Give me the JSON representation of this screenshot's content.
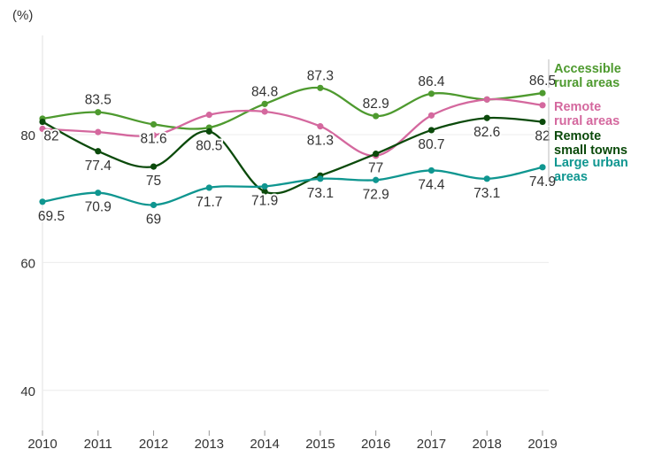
{
  "chart_data": {
    "type": "line",
    "title": "",
    "ylabel": "(%)",
    "xlabel": "",
    "x": [
      2010,
      2011,
      2012,
      2013,
      2014,
      2015,
      2016,
      2017,
      2018,
      2019
    ],
    "yticks": [
      40,
      60,
      80
    ],
    "ylim": [
      34,
      94
    ],
    "grid": true,
    "legend": "right, inline labels",
    "series": [
      {
        "name": "Accessible rural areas",
        "legend_lines": [
          "Accessible",
          "rural areas"
        ],
        "color": "#4e9a2f",
        "values": [
          82.5,
          83.5,
          81.6,
          81.1,
          84.8,
          87.3,
          82.9,
          86.4,
          85.5,
          86.5
        ],
        "labels": [
          null,
          "83.5",
          "81.6",
          null,
          "84.8",
          "87.3",
          "82.9",
          "86.4",
          null,
          "86.5"
        ]
      },
      {
        "name": "Remote rural areas",
        "legend_lines": [
          "Remote",
          "rural areas"
        ],
        "color": "#d4689e",
        "values": [
          80.9,
          80.4,
          79.9,
          83.1,
          83.6,
          81.3,
          76.7,
          83.0,
          85.5,
          84.6
        ],
        "labels": [
          null,
          null,
          null,
          null,
          null,
          "81.3",
          null,
          null,
          null,
          null
        ]
      },
      {
        "name": "Remote small towns",
        "legend_lines": [
          "Remote",
          "small towns"
        ],
        "color": "#0b4a0b",
        "values": [
          82,
          77.4,
          75,
          80.5,
          71.1,
          73.6,
          77,
          80.7,
          82.6,
          82
        ],
        "labels": [
          "82",
          "77.4",
          "75",
          "80.5",
          null,
          null,
          "77",
          "80.7",
          "82.6",
          "82"
        ]
      },
      {
        "name": "Large urban areas",
        "legend_lines": [
          "Large urban",
          "areas"
        ],
        "color": "#0f9690",
        "values": [
          69.5,
          70.9,
          69,
          71.7,
          71.9,
          73.1,
          72.9,
          74.4,
          73.1,
          74.9
        ],
        "labels": [
          "69.5",
          "70.9",
          "69",
          "71.7",
          "71.9",
          "73.1",
          "72.9",
          "74.4",
          "73.1",
          "74.9"
        ]
      }
    ]
  }
}
